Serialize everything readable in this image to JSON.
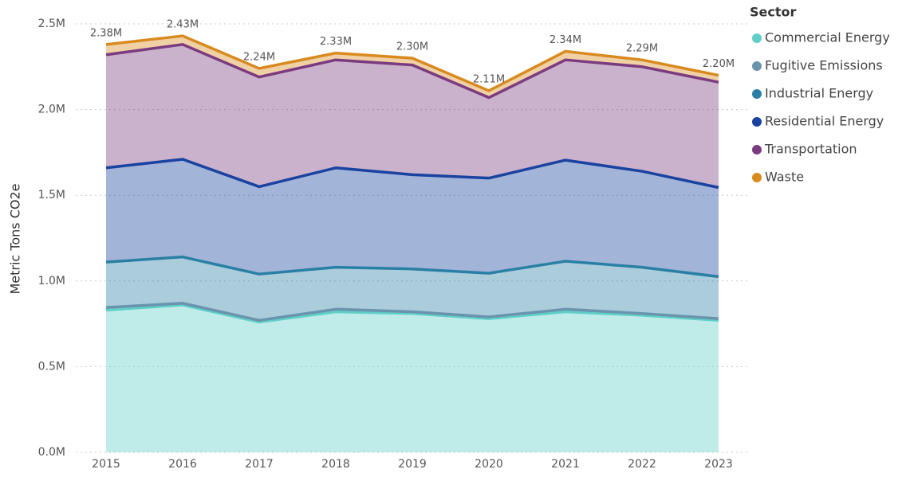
{
  "chart_data": {
    "type": "stacked_area",
    "y_label": "Metric Tons CO2e",
    "legend_title": "Sector",
    "legend_position": "right",
    "grid": true,
    "categories": [
      "2015",
      "2016",
      "2017",
      "2018",
      "2019",
      "2020",
      "2021",
      "2022",
      "2023"
    ],
    "ylim": [
      0,
      2500000
    ],
    "yticks": [
      {
        "value": 0,
        "label": "0.0M"
      },
      {
        "value": 500000,
        "label": "0.5M"
      },
      {
        "value": 1000000,
        "label": "1.0M"
      },
      {
        "value": 1500000,
        "label": "1.5M"
      },
      {
        "value": 2000000,
        "label": "2.0M"
      },
      {
        "value": 2500000,
        "label": "2.5M"
      }
    ],
    "series": [
      {
        "name": "Commercial Energy",
        "color": "#5fcfc8",
        "values": [
          830000,
          860000,
          760000,
          820000,
          810000,
          780000,
          820000,
          800000,
          770000
        ]
      },
      {
        "name": "Fugitive Emissions",
        "color": "#6a94ad",
        "values": [
          15000,
          10000,
          10000,
          15000,
          10000,
          10000,
          15000,
          10000,
          10000
        ]
      },
      {
        "name": "Industrial Energy",
        "color": "#2a80a4",
        "values": [
          265000,
          270000,
          270000,
          245000,
          250000,
          255000,
          280000,
          270000,
          245000
        ]
      },
      {
        "name": "Residential Energy",
        "color": "#1a43a0",
        "values": [
          550000,
          570000,
          510000,
          580000,
          550000,
          555000,
          590000,
          560000,
          520000
        ]
      },
      {
        "name": "Transportation",
        "color": "#7b3b7f",
        "values": [
          660000,
          670000,
          640000,
          630000,
          640000,
          470000,
          585000,
          610000,
          615000
        ]
      },
      {
        "name": "Waste",
        "color": "#d98a1f",
        "values": [
          60000,
          50000,
          50000,
          40000,
          40000,
          40000,
          50000,
          40000,
          40000
        ]
      }
    ],
    "totals": {
      "values": [
        2380000,
        2430000,
        2240000,
        2330000,
        2300000,
        2110000,
        2340000,
        2290000,
        2200000
      ],
      "value_labels": [
        "2.38M",
        "2.43M",
        "2.24M",
        "2.33M",
        "2.30M",
        "2.11M",
        "2.34M",
        "2.29M",
        "2.20M"
      ]
    }
  }
}
